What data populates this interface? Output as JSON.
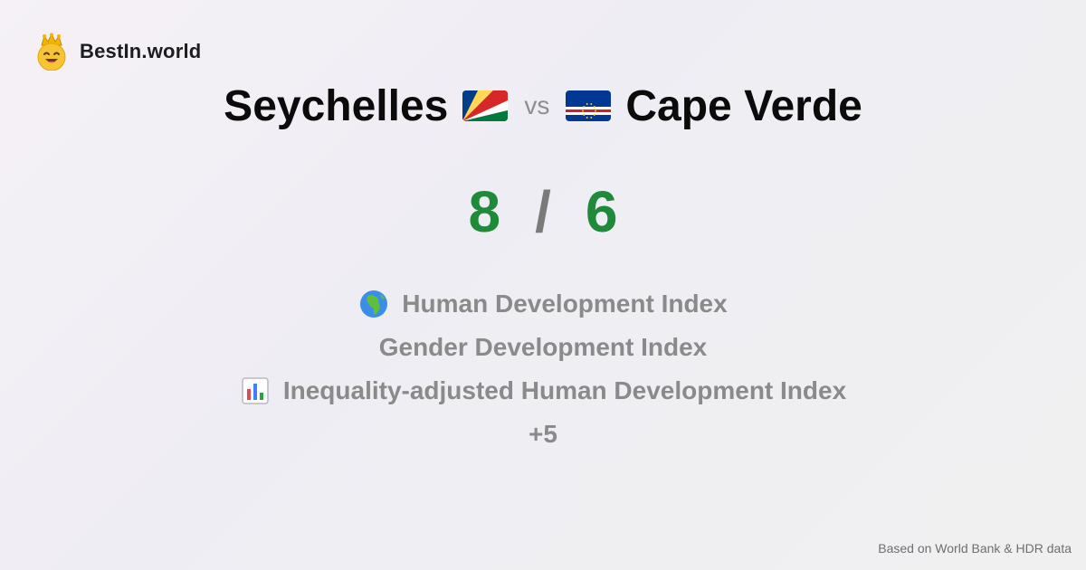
{
  "brand": {
    "name": "BestIn.world",
    "logo_icon": "crown-smiley-icon"
  },
  "comparison": {
    "left_country": "Seychelles",
    "left_flag_icon": "seychelles-flag-icon",
    "vs_label": "vs",
    "right_country": "Cape Verde",
    "right_flag_icon": "cape-verde-flag-icon"
  },
  "score": {
    "left": "8",
    "separator": "/",
    "right": "6",
    "color": "#1f8a3a"
  },
  "indices": [
    {
      "icon": "globe-africa-icon",
      "label": "Human Development Index"
    },
    {
      "icon": "",
      "label": "Gender Development Index"
    },
    {
      "icon": "bar-chart-icon",
      "label": "Inequality-adjusted Human Development Index"
    }
  ],
  "more_label": "+5",
  "footer": {
    "source_text": "Based on World Bank & HDR data"
  }
}
